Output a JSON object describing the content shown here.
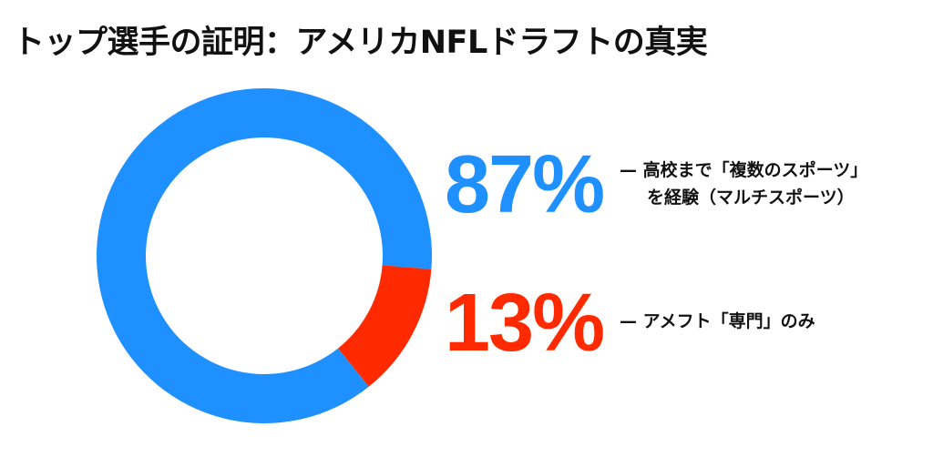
{
  "title": "トップ選手の証明：アメリカNFLドラフトの真実",
  "chart_data": {
    "type": "pie",
    "variant": "donut",
    "title": "トップ選手の証明：アメリカNFLドラフトの真実",
    "slices": [
      {
        "value": 87,
        "value_label": "87%",
        "label_line1": "— 高校まで「複数のスポーツ」",
        "label_line2": "を経験（マルチスポーツ）",
        "color": "#1e90ff"
      },
      {
        "value": 13,
        "value_label": "13%",
        "label_line1": "— アメフト「専門」のみ",
        "label_line2": "",
        "color": "#ff2a00"
      }
    ]
  }
}
